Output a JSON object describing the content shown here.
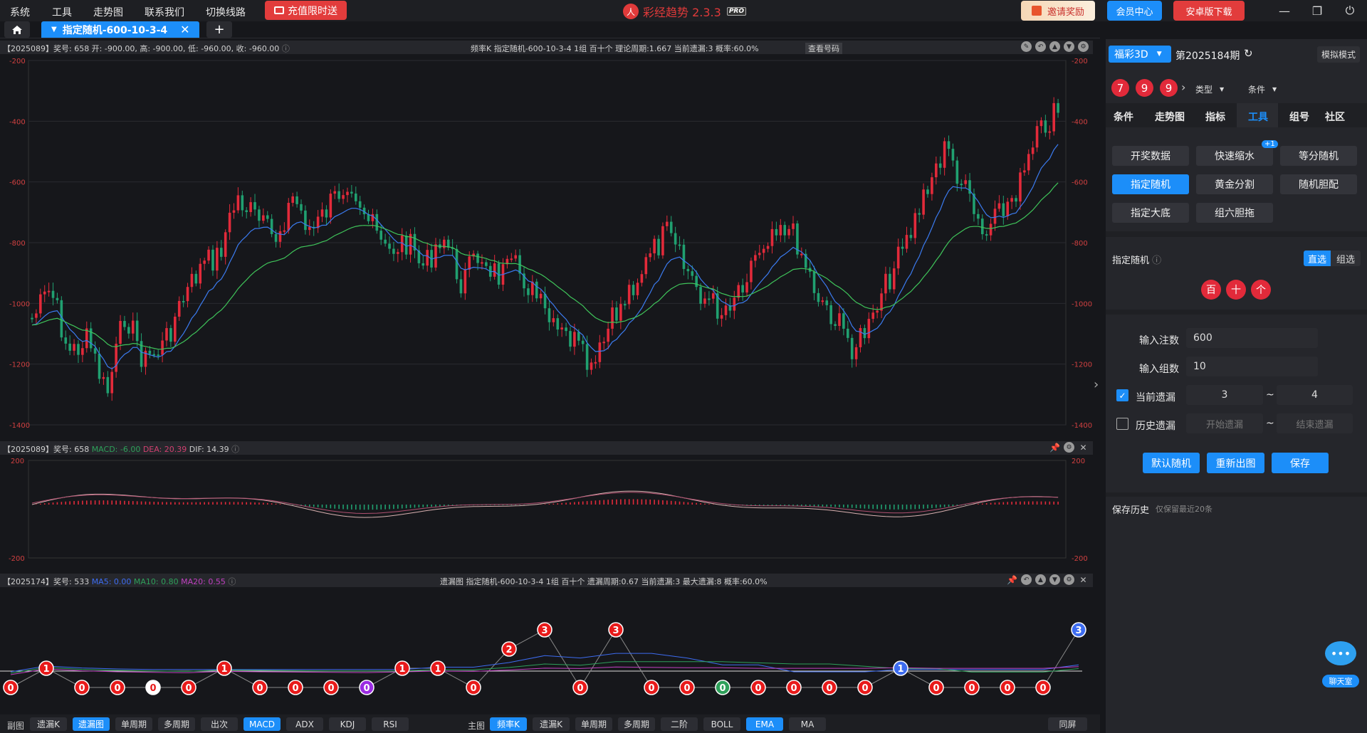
{
  "menu": [
    "系统",
    "工具",
    "走势图",
    "联系我们",
    "切换线路"
  ],
  "promo": {
    "label": "充值限时送"
  },
  "app": {
    "title": "彩经趋势 2.3.3",
    "badge": "PRO"
  },
  "top_buttons": {
    "invite": "邀请奖励",
    "member": "会员中心",
    "android": "安卓版下载"
  },
  "tab": {
    "label": "指定随机-600-10-3-4"
  },
  "main_panel": {
    "info": "【2025089】奖号: 658  开: -900.00, 高: -900.00, 低: -960.00, 收: -960.00",
    "center": "频率K  指定随机-600-10-3-4  1组  百十个  理论周期:1.667  当前遗漏:3  概率:60.0%",
    "view_btn": "查看号码",
    "y_ticks": [
      "-200",
      "-400",
      "-600",
      "-800",
      "-1000",
      "-1200",
      "-1400"
    ]
  },
  "macd_panel": {
    "prefix": "【2025089】奖号: 658 ",
    "macd": "MACD: -6.00",
    "dea": "DEA: 20.39",
    "dif": "DIF: 14.39",
    "y_ticks": [
      "200",
      "-200"
    ]
  },
  "omit_panel": {
    "prefix": "【2025174】奖号: 533 ",
    "ma5": "MA5: 0.00",
    "ma10": "MA10: 0.80",
    "ma20": "MA20: 0.55",
    "center": "遗漏图  指定随机-600-10-3-4  1组  百十个  遗漏周期:0.67  当前遗漏:3  最大遗漏:8  概率:60.0%",
    "points": [
      0,
      1,
      0,
      0,
      0,
      0,
      1,
      0,
      0,
      0,
      0,
      1,
      1,
      0,
      2,
      3,
      0,
      3,
      0,
      0,
      0,
      0,
      0,
      0,
      0,
      1,
      0,
      0,
      0,
      0,
      3
    ],
    "point_colors": {
      "4": "#ffffff",
      "10": "#9a2be2",
      "20": "#2ea05a",
      "25": "#3d6cf0",
      "30": "#3d6cf0"
    }
  },
  "bottom": {
    "sub_label": "副图",
    "sub_buttons": [
      "遗漏K",
      "遗漏图",
      "单周期",
      "多周期",
      "出次",
      "MACD",
      "ADX",
      "KDJ",
      "RSI"
    ],
    "sub_active": [
      "遗漏图",
      "MACD"
    ],
    "main_label": "主图",
    "main_buttons": [
      "频率K",
      "遗漏K",
      "单周期",
      "多周期",
      "二阶",
      "BOLL",
      "EMA",
      "MA"
    ],
    "main_active": [
      "频率K",
      "EMA"
    ],
    "same_screen": "同屏"
  },
  "right": {
    "lottery": "福彩3D",
    "period": "第2025184期",
    "mock_mode": "模拟模式",
    "balls": [
      "7",
      "9",
      "9"
    ],
    "type_dd": "类型",
    "cond_dd": "条件",
    "nav_tabs": [
      "条件",
      "走势图",
      "指标",
      "工具",
      "组号",
      "社区"
    ],
    "tools": [
      "开奖数据",
      "快速缩水",
      "等分随机",
      "指定随机",
      "黄金分割",
      "随机胆配",
      "指定大底",
      "组六胆拖"
    ],
    "badge": "+1",
    "section_title": "指定随机",
    "mode_direct": "直选",
    "mode_group": "组选",
    "positions": [
      "百",
      "十",
      "个"
    ],
    "bet_label": "输入注数",
    "bet_value": "600",
    "group_label": "输入组数",
    "group_value": "10",
    "cur_omit_label": "当前遗漏",
    "cur_omit_from": "3",
    "cur_omit_to": "4",
    "hist_omit_label": "历史遗漏",
    "hist_start_ph": "开始遗漏",
    "hist_end_ph": "结束遗漏",
    "tilde": "~",
    "btn_default": "默认随机",
    "btn_redraw": "重新出图",
    "btn_save": "保存",
    "history_title": "保存历史",
    "history_note": "仅保留最近20条"
  },
  "chat": {
    "label": "聊天室"
  },
  "colors": {
    "accent": "#1c8ef9",
    "up": "#e22a3a",
    "down": "#20a070",
    "ema_fast": "#3b7bf0",
    "ema_slow": "#3fc45a"
  }
}
